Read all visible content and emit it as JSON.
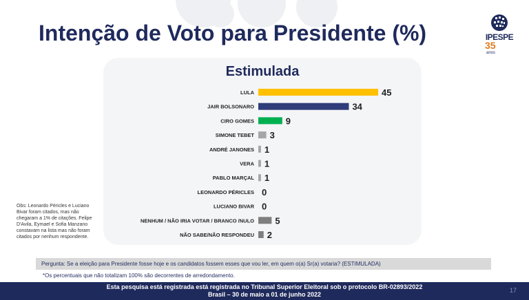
{
  "title": "Intenção de Voto para Presidente (%)",
  "logo": {
    "brand": "IPESPE",
    "number": "35",
    "suffix": "anos"
  },
  "chart_data": {
    "type": "bar",
    "orientation": "horizontal",
    "title": "Estimulada",
    "categories": [
      "LULA",
      "JAIR BOLSONARO",
      "CIRO GOMES",
      "SIMONE TEBET",
      "ANDRÉ JANONES",
      "VERA",
      "PABLO MARÇAL",
      "LEONARDO PÉRICLES",
      "LUCIANO BIVAR",
      "NENHUM / NÃO IRIA VOTAR / BRANCO /NULO",
      "NÃO SABE/NÃO RESPONDEU"
    ],
    "values": [
      45,
      34,
      9,
      3,
      1,
      1,
      1,
      0,
      0,
      5,
      2
    ],
    "colors": [
      "#ffc000",
      "#2f3e7a",
      "#00b050",
      "#a6a6a6",
      "#a6a6a6",
      "#a6a6a6",
      "#a6a6a6",
      "#a6a6a6",
      "#a6a6a6",
      "#7f7f7f",
      "#7f7f7f"
    ],
    "xlim": [
      0,
      45
    ],
    "grid": false
  },
  "obs": "Obs: Leonardo Péricles e Luciano Bivar foram citados, mas não chegaram a 1% de citações. Felipe D'Avila, Eymael e Sofia Manzano constavam na lista mas não foram citados por nenhum respondente.",
  "question": "Pergunta:  Se a eleição para Presidente fosse hoje e os candidatos fossem esses que vou ler, em quem o(a) Sr(a) votaria? (ESTIMULADA)",
  "note": "*Os percentuais que não totalizam 100% são decorrentes de arredondamento.",
  "footer": {
    "line1": "Esta pesquisa está registrada está registrada no Tribunal Superior Eleitoral sob o protocolo BR-02893/2022",
    "line2": "Brasil – 30 de maio a 01 de junho 2022",
    "page": "17"
  }
}
